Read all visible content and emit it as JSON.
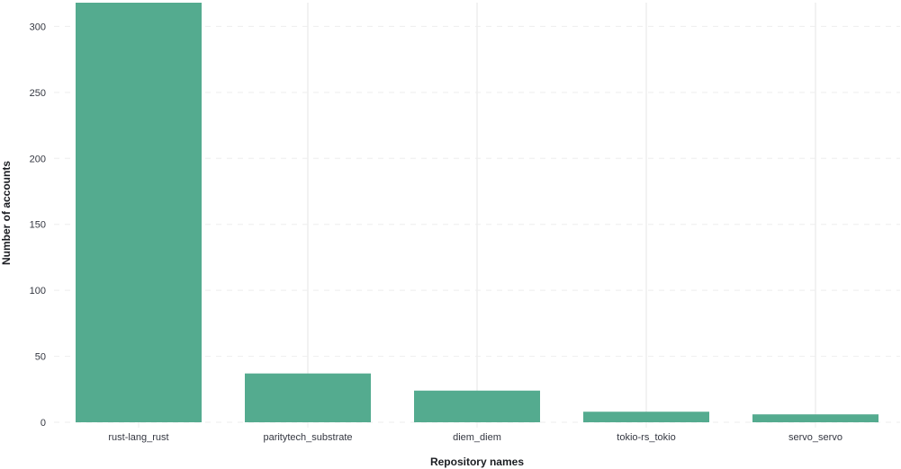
{
  "chart_data": {
    "type": "bar",
    "title": "",
    "xlabel": "Repository names",
    "ylabel": "Number of accounts",
    "categories": [
      "rust-lang_rust",
      "paritytech_substrate",
      "diem_diem",
      "tokio-rs_tokio",
      "servo_servo"
    ],
    "values": [
      318,
      37,
      24,
      8,
      6
    ],
    "yticks": [
      0,
      50,
      100,
      150,
      200,
      250,
      300
    ],
    "ylim": [
      0,
      318
    ],
    "grid": {
      "horizontal": "dashed",
      "vertical": "solid"
    },
    "legend": "none",
    "colors": {
      "bar": "#54ab8f",
      "grid": "#eeeeee",
      "tick_text": "#343741",
      "axis_title": "#1a1c21"
    }
  }
}
